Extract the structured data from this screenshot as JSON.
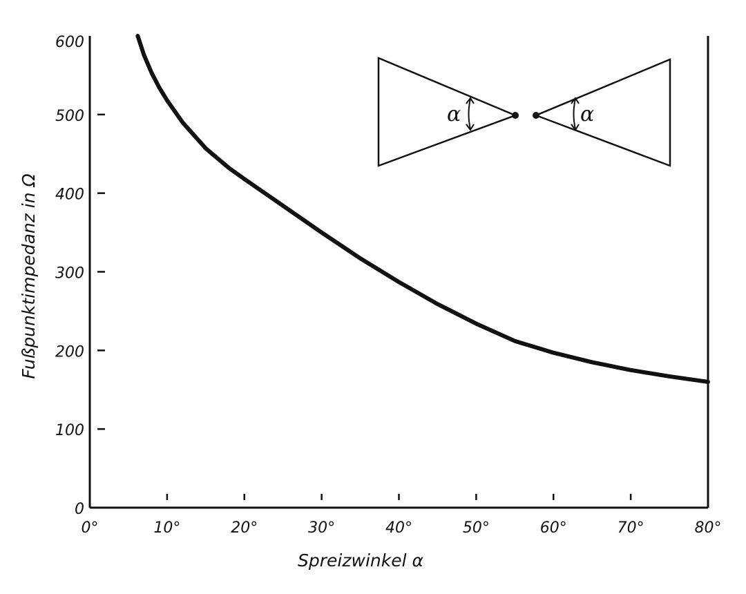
{
  "chart_data": {
    "type": "line",
    "title": "",
    "xlabel": "Spreizwinkel α",
    "ylabel": "Fußpunktimpedanz in Ω",
    "xlim": [
      0,
      80
    ],
    "ylim": [
      0,
      600
    ],
    "x_tick_labels": [
      "0°",
      "10°",
      "20°",
      "30°",
      "40°",
      "50°",
      "60°",
      "70°",
      "80°"
    ],
    "y_tick_labels": [
      "0",
      "100",
      "200",
      "300",
      "400",
      "500",
      "600"
    ],
    "grid": false,
    "legend": "none",
    "series": [
      {
        "x": [
          6.2,
          7,
          8,
          9,
          10,
          12,
          15,
          18,
          20,
          25,
          30,
          35,
          40,
          45,
          50,
          55,
          60,
          65,
          70,
          75,
          80
        ],
        "y": [
          600,
          576,
          553,
          534,
          518,
          490,
          457,
          432,
          418,
          384,
          350,
          317,
          287,
          259,
          234,
          212,
          197,
          185,
          175,
          167,
          160
        ]
      }
    ],
    "inset": {
      "description_label": "α"
    }
  },
  "colors": {
    "ink": "#111111",
    "background": "#ffffff"
  }
}
